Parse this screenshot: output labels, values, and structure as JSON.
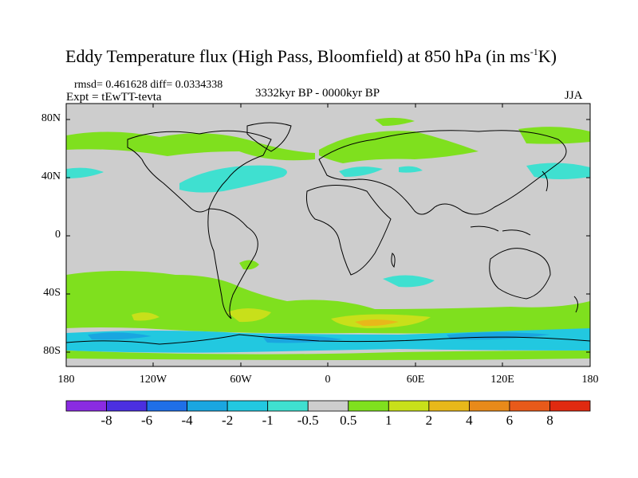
{
  "title": {
    "text": "Eddy Temperature flux (High Pass, Bloomfield) at 850 hPa (in ms",
    "sup": "-1",
    "tail": "K)"
  },
  "stats": "rmsd= 0.461628 diff= 0.0334338",
  "experiment": "Expt = tEwTT-tevta",
  "period": "3332kyr BP - 0000kyr BP",
  "season": "JJA",
  "axes": {
    "y_ticks": [
      "80N",
      "40N",
      "0",
      "40S",
      "80S"
    ],
    "x_ticks": [
      "180",
      "120W",
      "60W",
      "0",
      "60E",
      "120E",
      "180"
    ]
  },
  "colorbar": {
    "labels": [
      "-8",
      "-6",
      "-4",
      "-2",
      "-1",
      "-0.5",
      "0.5",
      "1",
      "2",
      "4",
      "6",
      "8"
    ],
    "colors": [
      "#8a2be2",
      "#4b2fe0",
      "#1f6fe8",
      "#1aa6e0",
      "#22c8e0",
      "#3fe0d0",
      "#cdcdcd",
      "#7fe01e",
      "#c8e01a",
      "#e8b81a",
      "#e88a1a",
      "#e85a1a",
      "#e02a10"
    ]
  },
  "map": {
    "background": "#cdcdcd",
    "land_outline": "#000000"
  }
}
